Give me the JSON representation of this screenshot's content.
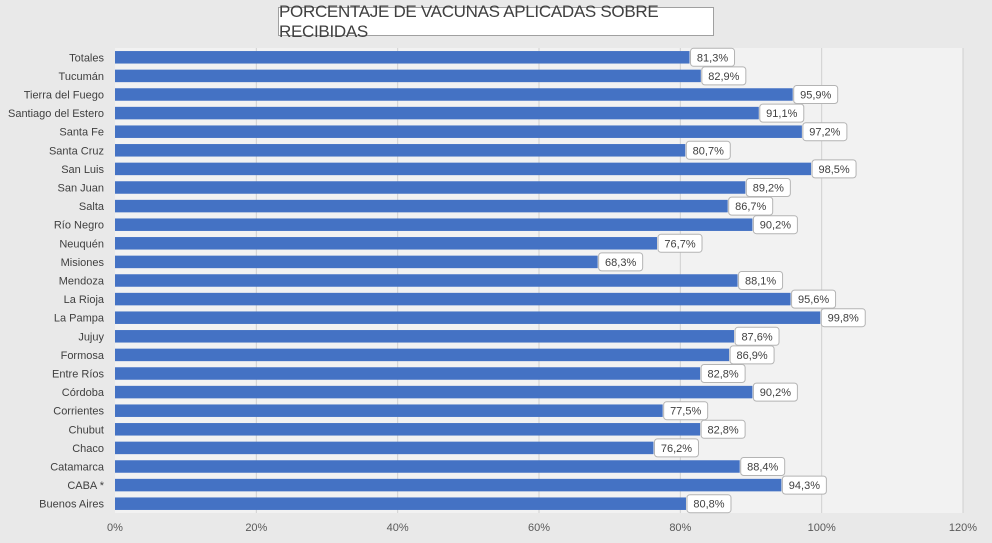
{
  "chart_data": {
    "type": "bar",
    "orientation": "horizontal",
    "title": "PORCENTAJE DE VACUNAS APLICADAS SOBRE RECIBIDAS",
    "categories": [
      "Totales",
      "Tucumán",
      "Tierra del Fuego",
      "Santiago del Estero",
      "Santa Fe",
      "Santa Cruz",
      "San Luis",
      "San Juan",
      "Salta",
      "Río Negro",
      "Neuquén",
      "Misiones",
      "Mendoza",
      "La Rioja",
      "La Pampa",
      "Jujuy",
      "Formosa",
      "Entre Ríos",
      "Córdoba",
      "Corrientes",
      "Chubut",
      "Chaco",
      "Catamarca",
      "CABA *",
      "Buenos Aires"
    ],
    "values": [
      81.3,
      82.9,
      95.9,
      91.1,
      97.2,
      80.7,
      98.5,
      89.2,
      86.7,
      90.2,
      76.7,
      68.3,
      88.1,
      95.6,
      99.8,
      87.6,
      86.9,
      82.8,
      90.2,
      77.5,
      82.8,
      76.2,
      88.4,
      94.3,
      80.8
    ],
    "data_labels": [
      "81,3%",
      "82,9%",
      "95,9%",
      "91,1%",
      "97,2%",
      "80,7%",
      "98,5%",
      "89,2%",
      "86,7%",
      "90,2%",
      "76,7%",
      "68,3%",
      "88,1%",
      "95,6%",
      "99,8%",
      "87,6%",
      "86,9%",
      "82,8%",
      "90,2%",
      "77,5%",
      "82,8%",
      "76,2%",
      "88,4%",
      "94,3%",
      "80,8%"
    ],
    "xticks": [
      0,
      20,
      40,
      60,
      80,
      100,
      120
    ],
    "xtick_labels": [
      "0%",
      "20%",
      "40%",
      "60%",
      "80%",
      "100%",
      "120%"
    ],
    "xlim": [
      0,
      120
    ],
    "xlabel": "",
    "ylabel": "",
    "grid": "vertical",
    "legend": "none",
    "colors": {
      "bar": "#4472c4",
      "plot_bg": "#f2f2f2",
      "chart_bg": "#e9e9e9",
      "grid": "#d0d0d0"
    }
  }
}
